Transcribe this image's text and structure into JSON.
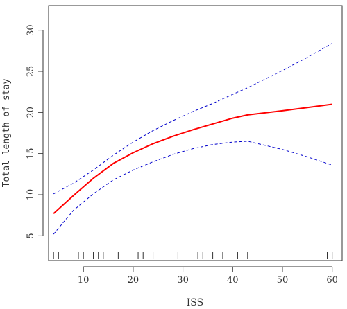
{
  "chart_data": {
    "type": "line",
    "title": "",
    "xlabel": "ISS",
    "ylabel": "Total length of stay",
    "xlim": [
      3,
      62
    ],
    "ylim": [
      2,
      33
    ],
    "x_ticks": [
      10,
      20,
      30,
      40,
      50,
      60
    ],
    "y_ticks": [
      5,
      10,
      15,
      20,
      25,
      30
    ],
    "grid": false,
    "legend": "none",
    "series": [
      {
        "role": "estimate",
        "color": "#ff0000",
        "style": "solid",
        "x": [
          4,
          8,
          12,
          16,
          20,
          24,
          28,
          32,
          36,
          40,
          43,
          50,
          55,
          60
        ],
        "y": [
          7.7,
          9.9,
          12.0,
          13.8,
          15.1,
          16.2,
          17.1,
          17.9,
          18.6,
          19.3,
          19.7,
          20.2,
          20.6,
          21.0
        ]
      },
      {
        "role": "upper-ci",
        "color": "#0000cc",
        "style": "dashed",
        "x": [
          4,
          8,
          12,
          16,
          20,
          24,
          28,
          32,
          36,
          40,
          43,
          50,
          55,
          60
        ],
        "y": [
          10.1,
          11.4,
          13.0,
          14.8,
          16.4,
          17.8,
          19.0,
          20.1,
          21.1,
          22.2,
          23.0,
          25.1,
          26.7,
          28.4
        ]
      },
      {
        "role": "lower-ci",
        "color": "#0000cc",
        "style": "dashed",
        "x": [
          4,
          8,
          12,
          16,
          20,
          24,
          28,
          32,
          36,
          40,
          43,
          50,
          55,
          60
        ],
        "y": [
          5.2,
          8.1,
          10.1,
          11.8,
          13.0,
          14.0,
          14.9,
          15.6,
          16.1,
          16.4,
          16.5,
          15.5,
          14.6,
          13.6
        ]
      }
    ],
    "rug": [
      4,
      5,
      9,
      10,
      12,
      13,
      14,
      17,
      21,
      22,
      24,
      29,
      33,
      34,
      36,
      38,
      41,
      43,
      59,
      60
    ]
  }
}
